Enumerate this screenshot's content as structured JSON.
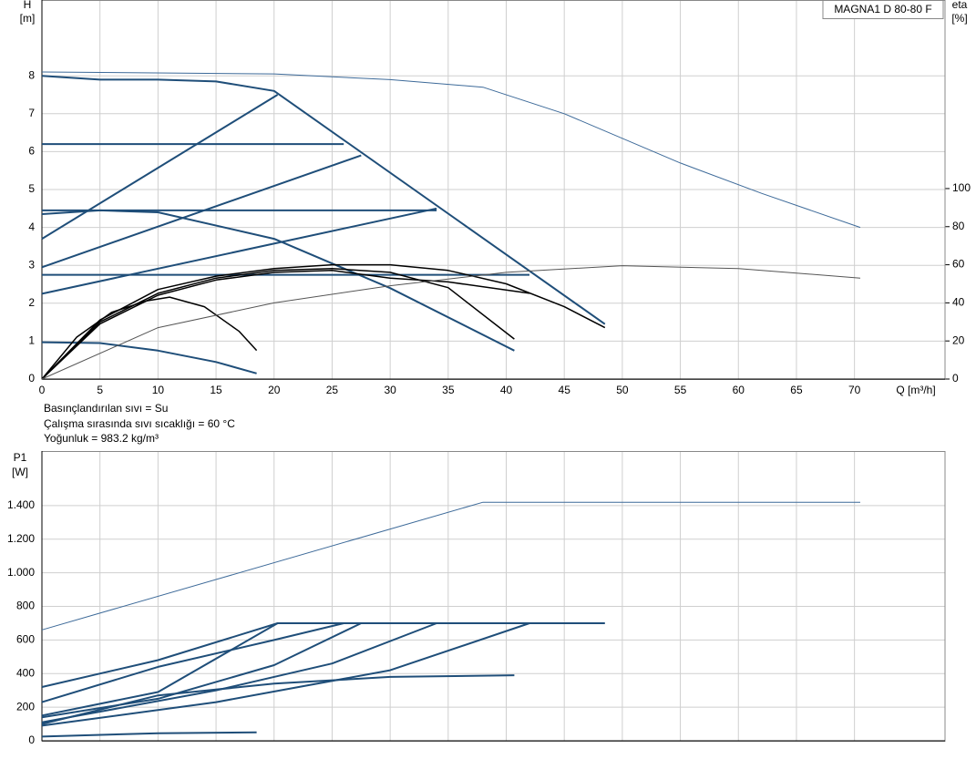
{
  "chart_data": [
    {
      "type": "line",
      "title": "MAGNA1 D 80-80 F",
      "y_label": "H",
      "y_unit": "[m]",
      "y2_label": "eta",
      "y2_unit": "[%]",
      "x_label": "Q [m³/h]",
      "notes": [
        "Basınçlandırılan sıvı = Su",
        "Çalışma sırasında sıvı sıcaklığı = 60 °C",
        "Yoğunluk = 983.2 kg/m³"
      ],
      "xlim": [
        0,
        77.8
      ],
      "xticks": [
        0,
        5,
        10,
        15,
        20,
        25,
        30,
        35,
        40,
        45,
        50,
        55,
        60,
        65,
        70
      ],
      "ylim": [
        0,
        10
      ],
      "yticks": [
        0,
        1,
        2,
        3,
        4,
        5,
        6,
        7,
        8
      ],
      "y2lim": [
        0,
        199
      ],
      "y2ticks": [
        0,
        20,
        40,
        60,
        80,
        100
      ],
      "grid": true,
      "series": [
        {
          "color": "#1f4e79",
          "linewidth": 2,
          "x": [
            0,
            5,
            10,
            15,
            20,
            48.5
          ],
          "values": [
            8.0,
            7.9,
            7.9,
            7.85,
            7.6,
            1.45
          ]
        },
        {
          "color": "#3d6a99",
          "linewidth": 1,
          "x": [
            0,
            20,
            30,
            38,
            45,
            55,
            62,
            70.5
          ],
          "values": [
            8.1,
            8.05,
            7.9,
            7.7,
            7.0,
            5.7,
            4.9,
            4.0
          ]
        },
        {
          "color": "#1f4e79",
          "linewidth": 2,
          "x": [
            0,
            26
          ],
          "values": [
            6.2,
            6.2
          ]
        },
        {
          "color": "#1f4e79",
          "linewidth": 2,
          "x": [
            0,
            34
          ],
          "values": [
            4.45,
            4.45
          ]
        },
        {
          "color": "#1f4e79",
          "linewidth": 2,
          "x": [
            0,
            42
          ],
          "values": [
            2.75,
            2.75
          ]
        },
        {
          "color": "#1f4e79",
          "linewidth": 2,
          "x": [
            0,
            20.3
          ],
          "values": [
            3.7,
            7.5
          ]
        },
        {
          "color": "#1f4e79",
          "linewidth": 2,
          "x": [
            0,
            27.5
          ],
          "values": [
            2.95,
            5.9
          ]
        },
        {
          "color": "#1f4e79",
          "linewidth": 2,
          "x": [
            0,
            34
          ],
          "values": [
            2.25,
            4.5
          ]
        },
        {
          "color": "#1f4e79",
          "linewidth": 2,
          "x": [
            0,
            5,
            10,
            20,
            30,
            40.7
          ],
          "values": [
            4.35,
            4.45,
            4.4,
            3.7,
            2.4,
            0.75
          ]
        },
        {
          "color": "#1f4e79",
          "linewidth": 2,
          "x": [
            0,
            5,
            10,
            15,
            18.5
          ],
          "values": [
            0.97,
            0.95,
            0.75,
            0.45,
            0.15
          ]
        },
        {
          "color": "#000000",
          "linewidth": 1.5,
          "axis": "y2",
          "x": [
            0,
            3,
            6,
            9,
            11,
            14,
            17,
            18.5
          ],
          "values": [
            0,
            22,
            35,
            41,
            43,
            38,
            25,
            15
          ]
        },
        {
          "color": "#000000",
          "linewidth": 1.5,
          "axis": "y2",
          "x": [
            0,
            5,
            10,
            15,
            20,
            25,
            30,
            35,
            40.7
          ],
          "values": [
            0,
            30,
            45,
            53,
            57,
            58,
            56,
            48,
            21
          ]
        },
        {
          "color": "#000000",
          "linewidth": 1.5,
          "axis": "y2",
          "x": [
            0,
            5,
            10,
            15,
            20,
            25,
            30,
            35,
            40,
            45,
            48.5
          ],
          "values": [
            0,
            31,
            47,
            54,
            58,
            60,
            60,
            57,
            50,
            38,
            27
          ]
        },
        {
          "color": "#000000",
          "linewidth": 1.5,
          "axis": "y2",
          "x": [
            0,
            5,
            10,
            15,
            20,
            25,
            30,
            35,
            42
          ],
          "values": [
            0,
            29,
            44,
            52,
            56,
            57,
            53,
            51,
            45
          ]
        },
        {
          "color": "#555555",
          "linewidth": 1,
          "axis": "y2",
          "x": [
            0,
            10,
            20,
            30,
            40,
            50,
            60,
            70.5
          ],
          "values": [
            0,
            27,
            40,
            49,
            56,
            59.5,
            58,
            53
          ]
        }
      ]
    },
    {
      "type": "line",
      "y_label": "P1",
      "y_unit": "[W]",
      "xlim": [
        0,
        77.8
      ],
      "ylim": [
        0,
        1725
      ],
      "yticks": [
        0,
        200,
        400,
        600,
        800,
        {
          "value": 1000,
          "label": "1.000"
        },
        {
          "value": 1200,
          "label": "1.200"
        },
        {
          "value": 1400,
          "label": "1.400"
        }
      ],
      "grid": true,
      "series": [
        {
          "color": "#3d6a99",
          "linewidth": 1,
          "x": [
            0,
            38,
            70.5
          ],
          "values": [
            660,
            1420,
            1420
          ]
        },
        {
          "color": "#1f4e79",
          "linewidth": 2,
          "x": [
            0,
            10,
            20.3,
            48.5
          ],
          "values": [
            320,
            480,
            700,
            700
          ]
        },
        {
          "color": "#1f4e79",
          "linewidth": 2,
          "x": [
            0,
            10,
            20,
            26
          ],
          "values": [
            230,
            440,
            600,
            700
          ]
        },
        {
          "color": "#1f4e79",
          "linewidth": 2,
          "x": [
            0,
            10,
            20.3
          ],
          "values": [
            150,
            290,
            700
          ]
        },
        {
          "color": "#1f4e79",
          "linewidth": 2,
          "x": [
            0,
            10,
            20,
            27.5
          ],
          "values": [
            140,
            250,
            450,
            700
          ]
        },
        {
          "color": "#1f4e79",
          "linewidth": 2,
          "x": [
            0,
            15,
            25,
            34
          ],
          "values": [
            110,
            300,
            460,
            700
          ]
        },
        {
          "color": "#1f4e79",
          "linewidth": 2,
          "x": [
            0,
            15,
            30,
            42
          ],
          "values": [
            90,
            230,
            420,
            700
          ]
        },
        {
          "color": "#1f4e79",
          "linewidth": 2,
          "x": [
            0,
            10,
            20,
            30,
            40.7
          ],
          "values": [
            100,
            270,
            340,
            380,
            390
          ]
        },
        {
          "color": "#1f4e79",
          "linewidth": 2,
          "x": [
            0,
            10,
            18.5
          ],
          "values": [
            25,
            45,
            50
          ]
        }
      ]
    }
  ]
}
